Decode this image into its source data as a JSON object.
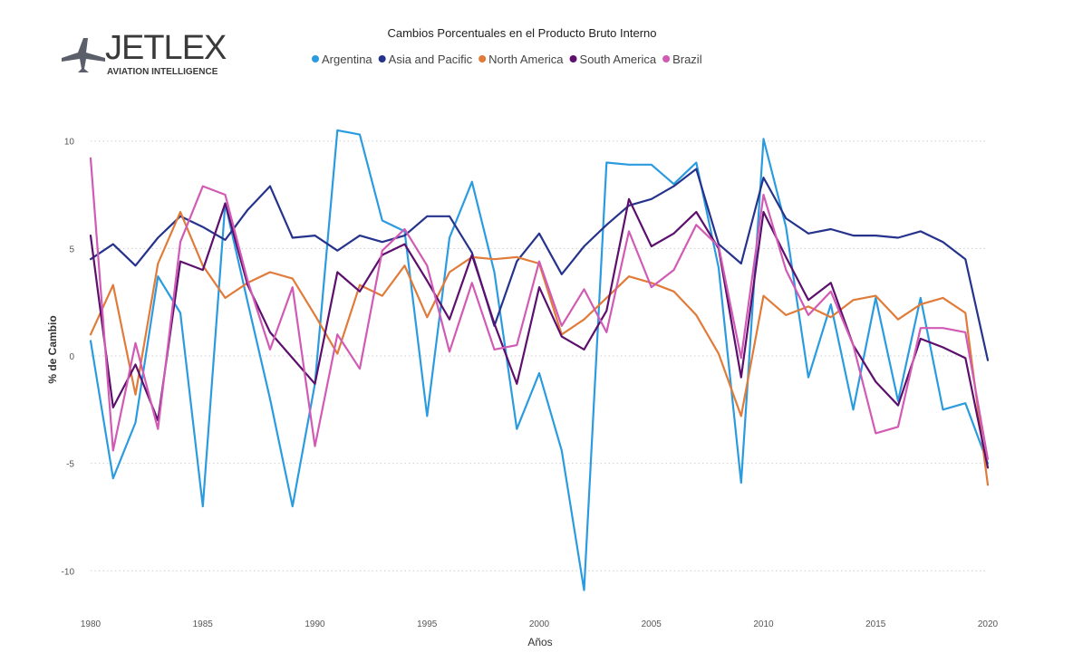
{
  "logo": {
    "name": "JETLEX",
    "tagline": "AVIATION INTELLIGENCE"
  },
  "chart_data": {
    "type": "line",
    "title": "Cambios Porcentuales en el Producto Bruto Interno",
    "xlabel": "Años",
    "ylabel": "% de Cambio",
    "xlim": [
      1980,
      2020
    ],
    "ylim": [
      -11,
      11
    ],
    "xticks": [
      1980,
      1985,
      1990,
      1995,
      2000,
      2005,
      2010,
      2015,
      2020
    ],
    "yticks": [
      10,
      5,
      0,
      -5,
      -10
    ],
    "grid": "horizontal-dotted",
    "legend": "top-center",
    "x": [
      1980,
      1981,
      1982,
      1983,
      1984,
      1985,
      1986,
      1987,
      1988,
      1989,
      1990,
      1991,
      1992,
      1993,
      1994,
      1995,
      1996,
      1997,
      1998,
      1999,
      2000,
      2001,
      2002,
      2003,
      2004,
      2005,
      2006,
      2007,
      2008,
      2009,
      2010,
      2011,
      2012,
      2013,
      2014,
      2015,
      2016,
      2017,
      2018,
      2019,
      2020
    ],
    "series": [
      {
        "name": "Argentina",
        "color": "#2b9be0",
        "values": [
          0.7,
          -5.7,
          -3.1,
          3.7,
          2.0,
          -7.0,
          7.1,
          2.5,
          -2.0,
          -7.0,
          -1.3,
          10.5,
          10.3,
          6.3,
          5.8,
          -2.8,
          5.5,
          8.1,
          3.9,
          -3.4,
          -0.8,
          -4.4,
          -10.9,
          9.0,
          8.9,
          8.9,
          8.0,
          9.0,
          4.1,
          -5.9,
          10.1,
          6.0,
          -1.0,
          2.4,
          -2.5,
          2.7,
          -2.1,
          2.7,
          -2.5,
          -2.2,
          -5.0
        ]
      },
      {
        "name": "Asia and Pacific",
        "color": "#26338c",
        "values": [
          4.5,
          5.2,
          4.2,
          5.5,
          6.5,
          6.0,
          5.4,
          6.8,
          7.9,
          5.5,
          5.6,
          4.9,
          5.6,
          5.3,
          5.6,
          6.5,
          6.5,
          4.8,
          1.4,
          4.4,
          5.7,
          3.8,
          5.1,
          6.1,
          7.0,
          7.3,
          7.9,
          8.7,
          5.2,
          4.3,
          8.3,
          6.4,
          5.7,
          5.9,
          5.6,
          5.6,
          5.5,
          5.8,
          5.3,
          4.5,
          -0.2
        ]
      },
      {
        "name": "North America",
        "color": "#e07b39",
        "values": [
          1.0,
          3.3,
          -1.8,
          4.3,
          6.7,
          4.2,
          2.7,
          3.4,
          3.9,
          3.6,
          1.9,
          0.1,
          3.3,
          2.8,
          4.2,
          1.8,
          3.9,
          4.6,
          4.5,
          4.6,
          4.3,
          1.0,
          1.7,
          2.7,
          3.7,
          3.4,
          3.0,
          1.9,
          0.1,
          -2.8,
          2.8,
          1.9,
          2.3,
          1.8,
          2.6,
          2.8,
          1.7,
          2.4,
          2.7,
          2.0,
          -6.0
        ]
      },
      {
        "name": "South America",
        "color": "#5c0f6d",
        "values": [
          5.6,
          -2.4,
          -0.4,
          -3.0,
          4.4,
          4.0,
          7.1,
          3.3,
          1.1,
          -0.1,
          -1.3,
          3.9,
          3.0,
          4.7,
          5.2,
          3.5,
          1.7,
          4.7,
          1.5,
          -1.3,
          3.2,
          0.9,
          0.3,
          2.1,
          7.3,
          5.1,
          5.7,
          6.7,
          5.0,
          -1.0,
          6.7,
          4.6,
          2.6,
          3.4,
          0.5,
          -1.2,
          -2.3,
          0.8,
          0.4,
          -0.1,
          -5.2
        ]
      },
      {
        "name": "Brazil",
        "color": "#d15bb4",
        "values": [
          9.2,
          -4.4,
          0.6,
          -3.4,
          5.3,
          7.9,
          7.5,
          3.5,
          0.3,
          3.2,
          -4.2,
          1.0,
          -0.6,
          4.9,
          5.9,
          4.2,
          0.2,
          3.4,
          0.3,
          0.5,
          4.4,
          1.4,
          3.1,
          1.1,
          5.8,
          3.2,
          4.0,
          6.1,
          5.1,
          -0.1,
          7.5,
          4.0,
          1.9,
          3.0,
          0.5,
          -3.6,
          -3.3,
          1.3,
          1.3,
          1.1,
          -4.8
        ]
      }
    ]
  }
}
